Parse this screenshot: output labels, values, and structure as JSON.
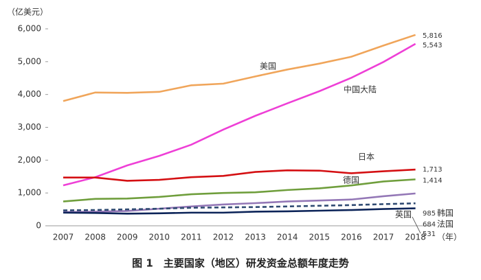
{
  "chart_data": {
    "type": "line",
    "y_label": "（亿美元）",
    "x_label": "（年）",
    "caption": "图 1　主要国家（地区）研发资金总额年度走势",
    "categories": [
      "2007",
      "2008",
      "2009",
      "2010",
      "2011",
      "2012",
      "2013",
      "2014",
      "2015",
      "2016",
      "2017",
      "2018"
    ],
    "ylim": [
      0,
      6000
    ],
    "yticks": [
      0,
      {
        "value": 1000,
        "label": "1,000"
      },
      {
        "value": 2000,
        "label": "2,000"
      },
      {
        "value": 3000,
        "label": "3,000"
      },
      {
        "value": 4000,
        "label": "4,000"
      },
      {
        "value": 5000,
        "label": "5,000"
      },
      {
        "value": 6000,
        "label": "6,000"
      }
    ],
    "series": [
      {
        "name": "美国",
        "color": "#f0a55a",
        "values": [
          3800,
          4060,
          4050,
          4080,
          4280,
          4330,
          4550,
          4760,
          4940,
          5150,
          5490,
          5816
        ],
        "value_labels": [
          null,
          null,
          null,
          null,
          null,
          null,
          null,
          null,
          null,
          null,
          null,
          "5,816"
        ]
      },
      {
        "name": "中国大陆",
        "color": "#ee3fd6",
        "values": [
          1230,
          1480,
          1840,
          2130,
          2470,
          2930,
          3350,
          3730,
          4100,
          4510,
          4990,
          5543
        ],
        "value_labels": [
          null,
          null,
          null,
          null,
          null,
          null,
          null,
          null,
          null,
          null,
          null,
          "5,543"
        ]
      },
      {
        "name": "日本",
        "color": "#d40f12",
        "values": [
          1470,
          1470,
          1370,
          1400,
          1480,
          1520,
          1640,
          1690,
          1680,
          1600,
          1660,
          1713
        ],
        "value_labels": [
          null,
          null,
          null,
          null,
          null,
          null,
          null,
          null,
          null,
          null,
          null,
          "1,713"
        ]
      },
      {
        "name": "德国",
        "color": "#6f9e3c",
        "values": [
          740,
          820,
          830,
          880,
          960,
          1000,
          1020,
          1090,
          1140,
          1230,
          1350,
          1414
        ],
        "value_labels": [
          null,
          null,
          null,
          null,
          null,
          null,
          null,
          null,
          null,
          null,
          null,
          "1,414"
        ]
      },
      {
        "name": "韩国",
        "color": "#9377b6",
        "values": [
          420,
          430,
          450,
          520,
          590,
          650,
          690,
          740,
          770,
          800,
          900,
          985
        ],
        "value_labels": [
          null,
          null,
          null,
          null,
          null,
          null,
          null,
          null,
          null,
          null,
          null,
          "985"
        ]
      },
      {
        "name": "法国",
        "color": "#2f4a72",
        "dashed": true,
        "values": [
          470,
          480,
          500,
          520,
          550,
          560,
          570,
          590,
          610,
          630,
          660,
          684
        ],
        "value_labels": [
          null,
          null,
          null,
          null,
          null,
          null,
          null,
          null,
          null,
          null,
          null,
          "684"
        ]
      },
      {
        "name": "英国",
        "color": "#0b2358",
        "values": [
          400,
          390,
          370,
          380,
          400,
          400,
          430,
          440,
          460,
          480,
          510,
          531
        ],
        "value_labels": [
          null,
          null,
          null,
          null,
          null,
          null,
          null,
          null,
          null,
          null,
          null,
          "531"
        ]
      }
    ]
  }
}
